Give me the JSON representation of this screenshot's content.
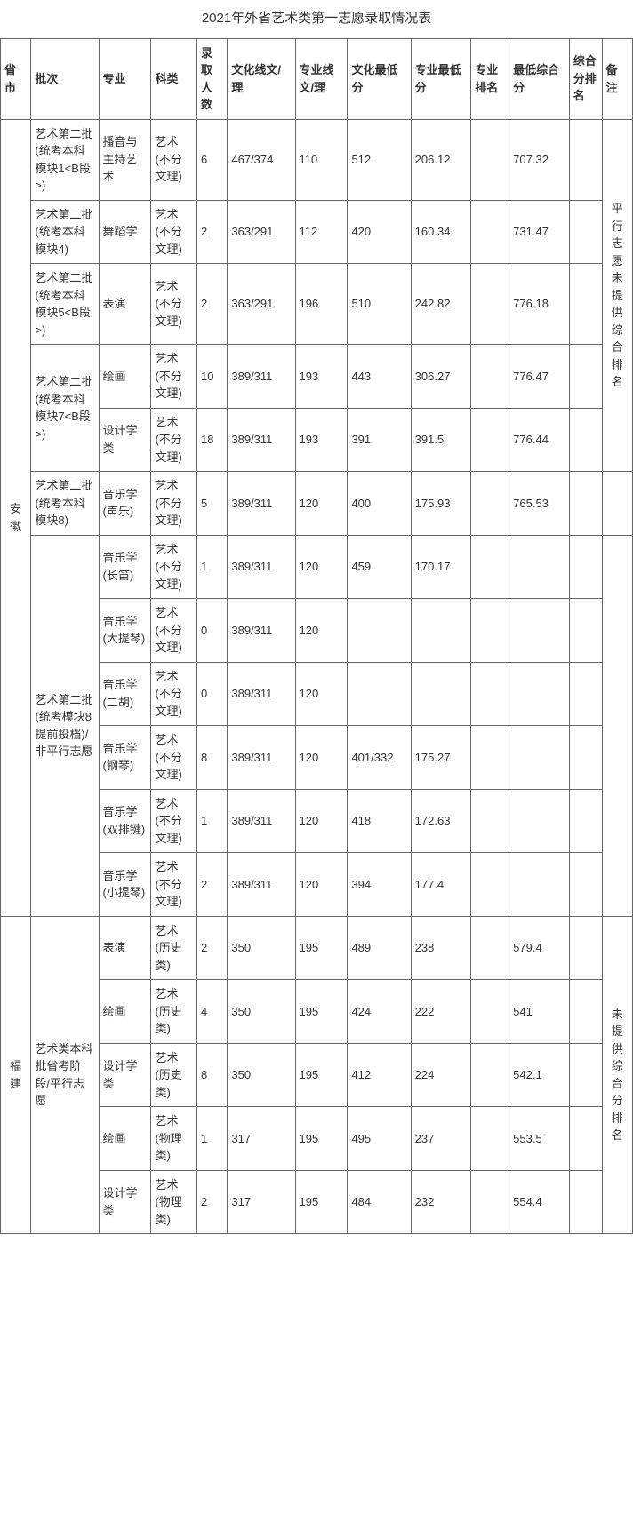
{
  "title": "2021年外省艺术类第一志愿录取情况表",
  "headers": {
    "province": "省市",
    "batch": "批次",
    "major": "专业",
    "category": "科类",
    "enroll_count": "录取人数",
    "culture_line": "文化线文/理",
    "pro_line": "专业线文/理",
    "culture_min": "文化最低分",
    "pro_min": "专业最低分",
    "pro_rank": "专业排名",
    "comp_min": "最低综合分",
    "comp_rank": "综合分排名",
    "note": "备注"
  },
  "provinces": [
    {
      "name": "安徽",
      "note1": "平行志愿未提供综合排名",
      "rows": [
        {
          "batch": "艺术第二批(统考本科模块1<B段>)",
          "major": "播音与主持艺术",
          "category": "艺术(不分文理)",
          "count": "6",
          "cline": "467/374",
          "pline": "110",
          "cmin": "512",
          "pmin": "206.12",
          "prank": "",
          "comp": "707.32",
          "crank": "",
          "mergeBatch": 1,
          "mergeNote": 5
        },
        {
          "batch": "艺术第二批(统考本科模块4)",
          "major": "舞蹈学",
          "category": "艺术(不分文理)",
          "count": "2",
          "cline": "363/291",
          "pline": "112",
          "cmin": "420",
          "pmin": "160.34",
          "prank": "",
          "comp": "731.47",
          "crank": "",
          "mergeBatch": 1
        },
        {
          "batch": "艺术第二批(统考本科模块5<B段>)",
          "major": "表演",
          "category": "艺术(不分文理)",
          "count": "2",
          "cline": "363/291",
          "pline": "196",
          "cmin": "510",
          "pmin": "242.82",
          "prank": "",
          "comp": "776.18",
          "crank": "",
          "mergeBatch": 1
        },
        {
          "batch": "艺术第二批(统考本科模块7<B段>)",
          "major": "绘画",
          "category": "艺术(不分文理)",
          "count": "10",
          "cline": "389/311",
          "pline": "193",
          "cmin": "443",
          "pmin": "306.27",
          "prank": "",
          "comp": "776.47",
          "crank": "",
          "mergeBatch": 2
        },
        {
          "major": "设计学类",
          "category": "艺术(不分文理)",
          "count": "18",
          "cline": "389/311",
          "pline": "193",
          "cmin": "391",
          "pmin": "391.5",
          "prank": "",
          "comp": "776.44",
          "crank": ""
        },
        {
          "batch": "艺术第二批(统考本科模块8)",
          "major": "音乐学(声乐)",
          "category": "艺术(不分文理)",
          "count": "5",
          "cline": "389/311",
          "pline": "120",
          "cmin": "400",
          "pmin": "175.93",
          "prank": "",
          "comp": "765.53",
          "crank": "",
          "mergeBatch": 1,
          "note": "",
          "mergeNote": 1
        },
        {
          "batch": "艺术第二批(统考模块8提前投档)/非平行志愿",
          "major": "音乐学(长笛)",
          "category": "艺术(不分文理)",
          "count": "1",
          "cline": "389/311",
          "pline": "120",
          "cmin": "459",
          "pmin": "170.17",
          "prank": "",
          "comp": "",
          "crank": "",
          "mergeBatch": 6,
          "note": "",
          "mergeNote": 6
        },
        {
          "major": "音乐学(大提琴)",
          "category": "艺术(不分文理)",
          "count": "0",
          "cline": "389/311",
          "pline": "120",
          "cmin": "",
          "pmin": "",
          "prank": "",
          "comp": "",
          "crank": ""
        },
        {
          "major": "音乐学(二胡)",
          "category": "艺术(不分文理)",
          "count": "0",
          "cline": "389/311",
          "pline": "120",
          "cmin": "",
          "pmin": "",
          "prank": "",
          "comp": "",
          "crank": ""
        },
        {
          "major": "音乐学(钢琴)",
          "category": "艺术(不分文理)",
          "count": "8",
          "cline": "389/311",
          "pline": "120",
          "cmin": "401/332",
          "pmin": "175.27",
          "prank": "",
          "comp": "",
          "crank": ""
        },
        {
          "major": "音乐学(双排键)",
          "category": "艺术(不分文理)",
          "count": "1",
          "cline": "389/311",
          "pline": "120",
          "cmin": "418",
          "pmin": "172.63",
          "prank": "",
          "comp": "",
          "crank": ""
        },
        {
          "major": "音乐学(小提琴)",
          "category": "艺术(不分文理)",
          "count": "2",
          "cline": "389/311",
          "pline": "120",
          "cmin": "394",
          "pmin": "177.4",
          "prank": "",
          "comp": "",
          "crank": ""
        }
      ]
    },
    {
      "name": "福建",
      "note1": "未提供综合分排名",
      "rows": [
        {
          "batch": "艺术类本科批省考阶段/平行志愿",
          "major": "表演",
          "category": "艺术(历史类)",
          "count": "2",
          "cline": "350",
          "pline": "195",
          "cmin": "489",
          "pmin": "238",
          "prank": "",
          "comp": "579.4",
          "crank": "",
          "mergeBatch": 5,
          "mergeNote": 5
        },
        {
          "major": "绘画",
          "category": "艺术(历史类)",
          "count": "4",
          "cline": "350",
          "pline": "195",
          "cmin": "424",
          "pmin": "222",
          "prank": "",
          "comp": "541",
          "crank": ""
        },
        {
          "major": "设计学类",
          "category": "艺术(历史类)",
          "count": "8",
          "cline": "350",
          "pline": "195",
          "cmin": "412",
          "pmin": "224",
          "prank": "",
          "comp": "542.1",
          "crank": ""
        },
        {
          "major": "绘画",
          "category": "艺术(物理类)",
          "count": "1",
          "cline": "317",
          "pline": "195",
          "cmin": "495",
          "pmin": "237",
          "prank": "",
          "comp": "553.5",
          "crank": ""
        },
        {
          "major": "设计学类",
          "category": "艺术(物理类)",
          "count": "2",
          "cline": "317",
          "pline": "195",
          "cmin": "484",
          "pmin": "232",
          "prank": "",
          "comp": "554.4",
          "crank": ""
        }
      ]
    }
  ]
}
